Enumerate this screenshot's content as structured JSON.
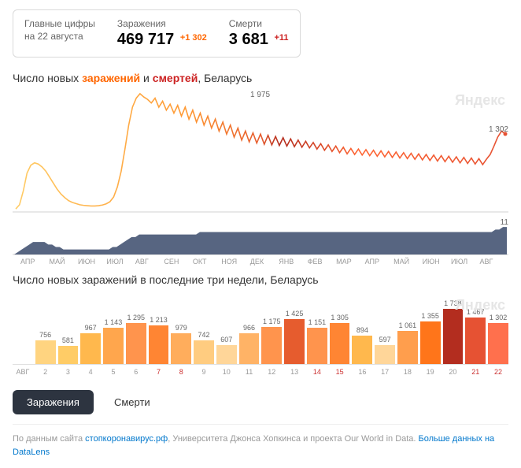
{
  "stats": {
    "title_line1": "Главные цифры",
    "title_line2": "на 22 августа",
    "infections_label": "Заражения",
    "infections_value": "469 717",
    "infections_delta": "+1 302",
    "deaths_label": "Смерти",
    "deaths_value": "3 681",
    "deaths_delta": "+11"
  },
  "main_chart": {
    "title_prefix": "Число новых ",
    "title_inf": "заражений",
    "title_mid": " и ",
    "title_dth": "смертей",
    "title_suffix": ", Беларусь",
    "watermark": "Яндекс",
    "peak_label": "1 975",
    "last_label": "1 302",
    "deaths_last": "11",
    "months": [
      "АПР",
      "МАЙ",
      "ИЮН",
      "ИЮЛ",
      "АВГ",
      "СЕН",
      "ОКТ",
      "НОЯ",
      "ДЕК",
      "ЯНВ",
      "ФЕВ",
      "МАР",
      "АПР",
      "МАЙ",
      "ИЮН",
      "ИЮЛ",
      "АВГ"
    ],
    "y_max": 2000,
    "inf_series": [
      50,
      120,
      350,
      650,
      780,
      820,
      800,
      750,
      680,
      580,
      480,
      380,
      300,
      240,
      190,
      160,
      140,
      120,
      110,
      105,
      100,
      100,
      105,
      115,
      135,
      170,
      250,
      420,
      680,
      1050,
      1450,
      1750,
      1900,
      1975,
      1920,
      1880,
      1820,
      1900,
      1750,
      1850,
      1700,
      1800,
      1650,
      1780,
      1600,
      1750,
      1550,
      1700,
      1500,
      1650,
      1450,
      1600,
      1400,
      1550,
      1350,
      1500,
      1300,
      1450,
      1250,
      1400,
      1200,
      1350,
      1170,
      1320,
      1150,
      1300,
      1130,
      1280,
      1120,
      1260,
      1110,
      1240,
      1100,
      1220,
      1090,
      1200,
      1080,
      1180,
      1070,
      1160,
      1050,
      1140,
      1030,
      1120,
      1010,
      1100,
      990,
      1080,
      970,
      1060,
      960,
      1050,
      950,
      1040,
      940,
      1030,
      930,
      1020,
      920,
      1010,
      910,
      1000,
      900,
      990,
      890,
      980,
      880,
      970,
      870,
      960,
      860,
      950,
      850,
      940,
      840,
      930,
      830,
      920,
      820,
      910,
      810,
      900,
      800,
      890,
      790,
      880,
      960,
      1100,
      1250,
      1350,
      1302
    ],
    "inf_color": "#ff9933",
    "inf_color_peak": "#cc3333",
    "background": "#ffffff"
  },
  "sub_chart": {
    "fill": "#3a4a6b",
    "max": 12,
    "series": [
      0,
      1,
      2,
      3,
      4,
      5,
      5,
      5,
      5,
      4,
      4,
      3,
      3,
      2,
      2,
      2,
      2,
      2,
      2,
      2,
      2,
      2,
      2,
      2,
      2,
      2,
      3,
      3,
      4,
      5,
      6,
      7,
      7,
      8,
      8,
      8,
      8,
      8,
      8,
      8,
      8,
      8,
      8,
      8,
      8,
      8,
      8,
      8,
      8,
      9,
      9,
      9,
      9,
      9,
      9,
      9,
      9,
      9,
      9,
      9,
      9,
      9,
      9,
      9,
      9,
      9,
      9,
      9,
      9,
      9,
      9,
      9,
      9,
      9,
      9,
      9,
      9,
      9,
      9,
      9,
      9,
      9,
      9,
      9,
      9,
      9,
      9,
      9,
      9,
      9,
      9,
      9,
      9,
      9,
      9,
      9,
      9,
      9,
      9,
      9,
      9,
      9,
      9,
      9,
      9,
      9,
      9,
      9,
      9,
      9,
      9,
      9,
      9,
      9,
      9,
      9,
      9,
      9,
      9,
      9,
      9,
      9,
      9,
      9,
      9,
      9,
      9,
      10,
      10,
      11,
      11
    ]
  },
  "bars": {
    "title": "Число новых заражений в последние три недели, Беларусь",
    "watermark": "Яндекс",
    "month_label": "АВГ",
    "max": 1800,
    "items": [
      {
        "day": "2",
        "val": 756,
        "label": "756",
        "color": "#ffd480",
        "weekend": false
      },
      {
        "day": "3",
        "val": 581,
        "label": "581",
        "color": "#ffcc66",
        "weekend": false
      },
      {
        "day": "4",
        "val": 967,
        "label": "967",
        "color": "#ffb84d",
        "weekend": false
      },
      {
        "day": "5",
        "val": 1143,
        "label": "1 143",
        "color": "#ffa64d",
        "weekend": false
      },
      {
        "day": "6",
        "val": 1295,
        "label": "1 295",
        "color": "#ff944d",
        "weekend": false
      },
      {
        "day": "7",
        "val": 1213,
        "label": "1 213",
        "color": "#ff8533",
        "weekend": true
      },
      {
        "day": "8",
        "val": 979,
        "label": "979",
        "color": "#ffad5c",
        "weekend": true
      },
      {
        "day": "9",
        "val": 742,
        "label": "742",
        "color": "#ffcc80",
        "weekend": false
      },
      {
        "day": "10",
        "val": 607,
        "label": "607",
        "color": "#ffd699",
        "weekend": false
      },
      {
        "day": "11",
        "val": 966,
        "label": "966",
        "color": "#ffb366",
        "weekend": false
      },
      {
        "day": "12",
        "val": 1175,
        "label": "1 175",
        "color": "#ff944d",
        "weekend": false
      },
      {
        "day": "13",
        "val": 1425,
        "label": "1 425",
        "color": "#e65c2e",
        "weekend": false
      },
      {
        "day": "14",
        "val": 1151,
        "label": "1 151",
        "color": "#ff944d",
        "weekend": true
      },
      {
        "day": "15",
        "val": 1305,
        "label": "1 305",
        "color": "#ff8533",
        "weekend": true
      },
      {
        "day": "16",
        "val": 894,
        "label": "894",
        "color": "#ffb84d",
        "weekend": false
      },
      {
        "day": "17",
        "val": 597,
        "label": "597",
        "color": "#ffd699",
        "weekend": false
      },
      {
        "day": "18",
        "val": 1061,
        "label": "1 061",
        "color": "#ff9e4d",
        "weekend": false
      },
      {
        "day": "19",
        "val": 1355,
        "label": "1 355",
        "color": "#ff751a",
        "weekend": false
      },
      {
        "day": "20",
        "val": 1738,
        "label": "1 738",
        "color": "#b32d1f",
        "weekend": false
      },
      {
        "day": "21",
        "val": 1467,
        "label": "1 467",
        "color": "#e65233",
        "weekend": true
      },
      {
        "day": "22",
        "val": 1302,
        "label": "1 302",
        "color": "#ff704d",
        "weekend": true
      }
    ]
  },
  "tabs": {
    "infections": "Заражения",
    "deaths": "Смерти"
  },
  "footer": {
    "prefix": "По данным сайта ",
    "link1": "стопкоронавирус.рф",
    "mid": ", Университета Джонса Хопкинса и проекта Our World in Data. ",
    "link2": "Больше данных на DataLens"
  }
}
